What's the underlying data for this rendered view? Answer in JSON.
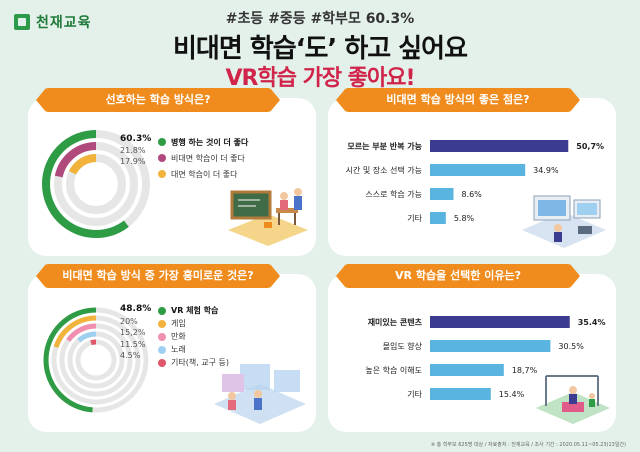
{
  "header": {
    "logo_text": "천재교육",
    "hashtags": "#초등 #중등 #학부모 60.3%",
    "title_line1": "비대면 학습‘도’ 하고 싶어요",
    "title_line2": "VR학습 가장 좋아요!"
  },
  "colors": {
    "background": "#e4f1ea",
    "banner": "#f08c1e",
    "accent_red": "#d0244b",
    "bar_top": "#3b3b8f",
    "bar_rest": "#5ab4e0",
    "donut_green": "#2e9b45",
    "donut_track": "#e6e6e6"
  },
  "panels": {
    "preferred_method": {
      "heading": "선호하는 학습 방식은?"
    },
    "remote_benefits": {
      "heading": "비대면 학습 방식의 좋은 점은?"
    },
    "most_interesting": {
      "heading": "비대면 학습 방식 중 가장 흥미로운 것은?"
    },
    "vr_reason": {
      "heading": "VR 학습을 선택한 이유는?"
    }
  },
  "chart_data": [
    {
      "id": "preferred_method",
      "type": "pie",
      "style": "concentric-donut",
      "title": "선호하는 학습 방식은?",
      "series": [
        {
          "name": "병행 하는 것이 더 좋다",
          "value": 60.3,
          "label": "60.3%",
          "color": "#2e9b45"
        },
        {
          "name": "비대면 학습이 더 좋다",
          "value": 21.8,
          "label": "21.8%",
          "color": "#b04a7c"
        },
        {
          "name": "대면 학습이 더 좋다",
          "value": 17.9,
          "label": "17.9%",
          "color": "#f2b33d"
        }
      ]
    },
    {
      "id": "remote_benefits",
      "type": "bar",
      "orientation": "horizontal",
      "title": "비대면 학습 방식의 좋은 점은?",
      "categories": [
        "모르는 부분 반복 가능",
        "시간 및 장소 선택 가능",
        "스스로 학습 가능",
        "기타"
      ],
      "values": [
        50.7,
        34.9,
        8.6,
        5.8
      ],
      "labels": [
        "50,7%",
        "34.9%",
        "8.6%",
        "5.8%"
      ],
      "xlim": [
        0,
        55
      ]
    },
    {
      "id": "most_interesting",
      "type": "pie",
      "style": "concentric-donut",
      "title": "비대면 학습 방식 중 가장 흥미로운 것은?",
      "series": [
        {
          "name": "VR 체험 학습",
          "value": 48.8,
          "label": "48.8%",
          "color": "#2e9b45"
        },
        {
          "name": "게임",
          "value": 20,
          "label": "20%",
          "color": "#f2b33d"
        },
        {
          "name": "만화",
          "value": 15.2,
          "label": "15,2%",
          "color": "#f08fb0"
        },
        {
          "name": "노래",
          "value": 11.5,
          "label": "11.5%",
          "color": "#9fd0ef"
        },
        {
          "name": "기타(책, 교구 등)",
          "value": 4.5,
          "label": "4.5%",
          "color": "#e0566a"
        }
      ]
    },
    {
      "id": "vr_reason",
      "type": "bar",
      "orientation": "horizontal",
      "title": "VR 학습을 선택한 이유는?",
      "categories": [
        "재미있는 콘텐츠",
        "몰입도 향상",
        "높은 학습 이해도",
        "기타"
      ],
      "values": [
        35.4,
        30.5,
        18.7,
        15.4
      ],
      "labels": [
        "35.4%",
        "30.5%",
        "18,7%",
        "15.4%"
      ],
      "xlim": [
        0,
        38
      ]
    }
  ],
  "footnote": "※ 총 학부모 625명 대상 / 자료출처 : 천재교육 / 조사 기간 : 2020.05.11~05.23(13일간)"
}
